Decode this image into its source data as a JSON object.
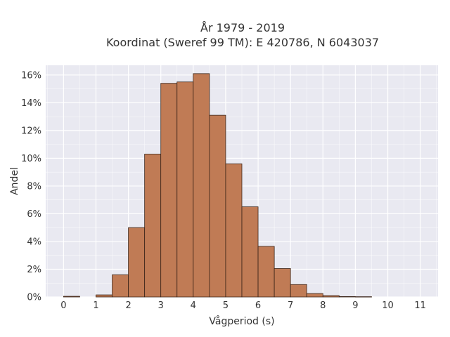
{
  "chart_data": {
    "type": "bar",
    "title": "År 1979 - 2019",
    "subtitle": "Koordinat (Sweref 99 TM): E 420786, N 6043037",
    "xlabel": "Vågperiod (s)",
    "ylabel": "Andel",
    "xlim": [
      -0.55,
      11.55
    ],
    "ylim": [
      0,
      16.7
    ],
    "x_ticks": [
      "0",
      "1",
      "2",
      "3",
      "4",
      "5",
      "6",
      "7",
      "8",
      "9",
      "10",
      "11"
    ],
    "y_ticks": [
      "0%",
      "2%",
      "4%",
      "6%",
      "8%",
      "10%",
      "12%",
      "14%",
      "16%"
    ],
    "bin_width": 0.5,
    "bins": [
      {
        "start": 0.0,
        "value": 0.05
      },
      {
        "start": 1.0,
        "value": 0.15
      },
      {
        "start": 1.5,
        "value": 1.6
      },
      {
        "start": 2.0,
        "value": 5.0
      },
      {
        "start": 2.5,
        "value": 10.3
      },
      {
        "start": 3.0,
        "value": 15.4
      },
      {
        "start": 3.5,
        "value": 15.5
      },
      {
        "start": 4.0,
        "value": 16.1
      },
      {
        "start": 4.5,
        "value": 13.1
      },
      {
        "start": 5.0,
        "value": 9.6
      },
      {
        "start": 5.5,
        "value": 6.5
      },
      {
        "start": 6.0,
        "value": 3.65
      },
      {
        "start": 6.5,
        "value": 2.05
      },
      {
        "start": 7.0,
        "value": 0.9
      },
      {
        "start": 7.5,
        "value": 0.25
      },
      {
        "start": 8.0,
        "value": 0.1
      },
      {
        "start": 8.5,
        "value": 0.03
      },
      {
        "start": 9.0,
        "value": 0.02
      }
    ],
    "grid": true,
    "colors": {
      "bar_fill": "#C07B55",
      "bar_stroke": "#3a2418",
      "plot_background": "#E9E9F1",
      "grid": "#ffffff"
    }
  }
}
